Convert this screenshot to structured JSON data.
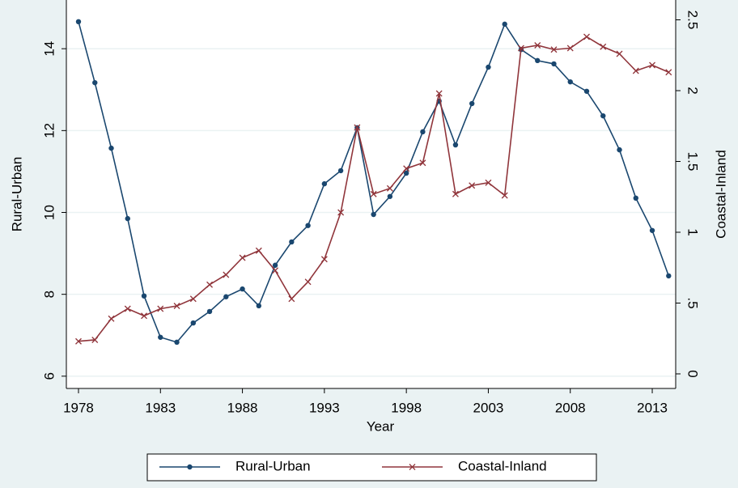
{
  "chart_data": {
    "type": "line",
    "x": [
      1978,
      1979,
      1980,
      1981,
      1982,
      1983,
      1984,
      1985,
      1986,
      1987,
      1988,
      1989,
      1990,
      1991,
      1992,
      1993,
      1994,
      1995,
      1996,
      1997,
      1998,
      1999,
      2000,
      2001,
      2002,
      2003,
      2004,
      2005,
      2006,
      2007,
      2008,
      2009,
      2010,
      2011,
      2012,
      2013,
      2014
    ],
    "xlabel": "Year",
    "ylabel": "Rural-Urban",
    "y2label": "Coastal-Inland",
    "xlim": [
      1977.26,
      2014.43
    ],
    "xticks": [
      1978,
      1983,
      1988,
      1993,
      1998,
      2003,
      2008,
      2013
    ],
    "ylim": [
      5.7,
      15.19
    ],
    "yticks": [
      6,
      8,
      10,
      12,
      14
    ],
    "y2lim": [
      -0.103,
      2.64
    ],
    "y2ticks": [
      0,
      {
        "value": 0.5,
        "label": ".5"
      },
      1,
      1.5,
      2,
      2.5
    ],
    "grid": true,
    "legend": "bottom",
    "series": [
      {
        "name": "Rural-Urban",
        "color": "#1a476f",
        "marker": "circle",
        "values": [
          14.66,
          13.17,
          11.57,
          9.85,
          7.96,
          6.95,
          6.83,
          7.3,
          7.58,
          7.94,
          8.13,
          7.72,
          8.71,
          9.28,
          9.68,
          10.7,
          11.02,
          12.07,
          9.95,
          10.39,
          10.96,
          11.97,
          12.72,
          11.65,
          12.66,
          13.55,
          14.6,
          13.98,
          13.71,
          13.63,
          13.19,
          12.96,
          12.36,
          11.53,
          10.35,
          9.56,
          8.45
        ]
      },
      {
        "name": "Coastal-Inland",
        "color": "#90353b",
        "marker": "x",
        "axis": "y2",
        "values": [
          0.23,
          0.24,
          0.39,
          0.46,
          0.41,
          0.46,
          0.48,
          0.53,
          0.63,
          0.7,
          0.82,
          0.87,
          0.73,
          0.53,
          0.65,
          0.81,
          1.14,
          1.74,
          1.27,
          1.31,
          1.45,
          1.49,
          1.98,
          1.27,
          1.33,
          1.35,
          1.26,
          2.3,
          2.32,
          2.29,
          2.3,
          2.38,
          2.31,
          2.26,
          2.14,
          2.18,
          2.13
        ]
      }
    ]
  }
}
